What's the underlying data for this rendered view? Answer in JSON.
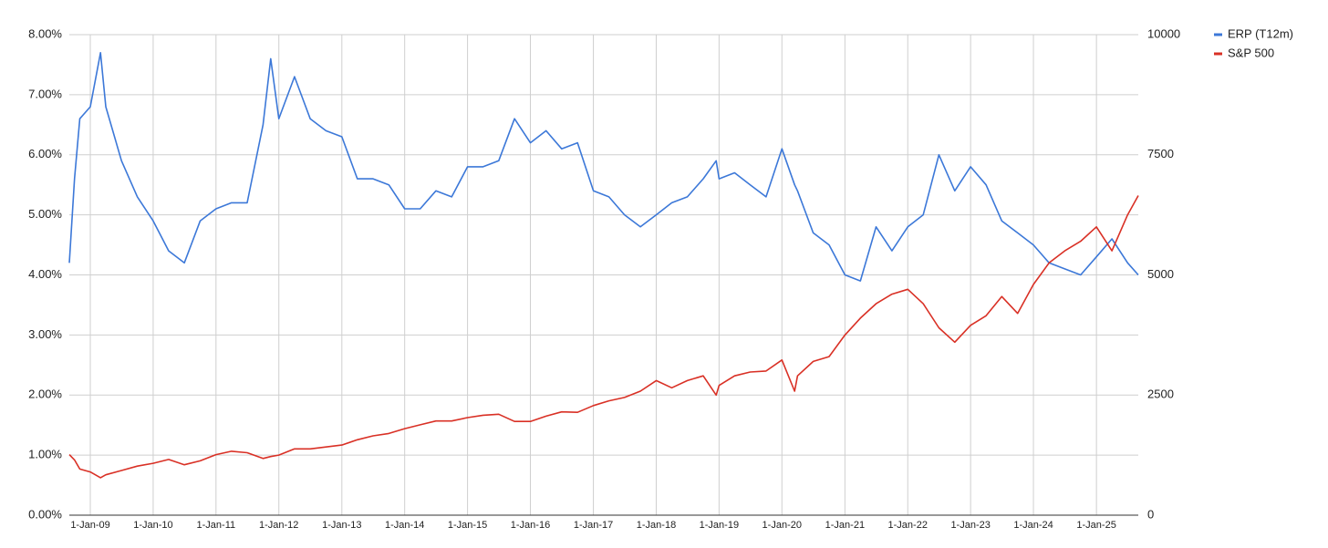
{
  "chart_data": {
    "type": "line",
    "x": [
      "2008-09-01",
      "2008-10-01",
      "2008-11-01",
      "2009-01-01",
      "2009-03-01",
      "2009-04-01",
      "2009-07-01",
      "2009-10-01",
      "2010-01-01",
      "2010-04-01",
      "2010-07-01",
      "2010-10-01",
      "2011-01-01",
      "2011-04-01",
      "2011-07-01",
      "2011-10-01",
      "2011-11-15",
      "2012-01-01",
      "2012-04-01",
      "2012-07-01",
      "2012-10-01",
      "2013-01-01",
      "2013-04-01",
      "2013-07-01",
      "2013-10-01",
      "2014-01-01",
      "2014-04-01",
      "2014-07-01",
      "2014-10-01",
      "2015-01-01",
      "2015-04-01",
      "2015-07-01",
      "2015-10-01",
      "2016-01-01",
      "2016-04-01",
      "2016-07-01",
      "2016-10-01",
      "2017-01-01",
      "2017-04-01",
      "2017-07-01",
      "2017-10-01",
      "2018-01-01",
      "2018-04-01",
      "2018-07-01",
      "2018-10-01",
      "2018-12-15",
      "2019-01-01",
      "2019-04-01",
      "2019-07-01",
      "2019-10-01",
      "2020-01-01",
      "2020-03-15",
      "2020-04-01",
      "2020-07-01",
      "2020-10-01",
      "2021-01-01",
      "2021-04-01",
      "2021-07-01",
      "2021-10-01",
      "2022-01-01",
      "2022-04-01",
      "2022-07-01",
      "2022-10-01",
      "2023-01-01",
      "2023-04-01",
      "2023-07-01",
      "2023-10-01",
      "2024-01-01",
      "2024-04-01",
      "2024-07-01",
      "2024-10-01",
      "2025-01-01",
      "2025-04-01",
      "2025-07-01",
      "2025-09-01"
    ],
    "series": [
      {
        "name": "ERP (T12m)",
        "color": "#3c78d8",
        "axis": "y",
        "values": [
          4.2,
          5.6,
          6.6,
          6.8,
          7.7,
          6.8,
          5.9,
          5.3,
          4.9,
          4.4,
          4.2,
          4.9,
          5.1,
          5.2,
          5.2,
          6.5,
          7.6,
          6.6,
          7.3,
          6.6,
          6.4,
          6.3,
          5.6,
          5.6,
          5.5,
          5.1,
          5.1,
          5.4,
          5.3,
          5.8,
          5.8,
          5.9,
          6.6,
          6.2,
          6.4,
          6.1,
          6.2,
          5.4,
          5.3,
          5.0,
          4.8,
          5.0,
          5.2,
          5.3,
          5.6,
          5.9,
          5.6,
          5.7,
          5.5,
          5.3,
          6.1,
          5.5,
          5.4,
          4.7,
          4.5,
          4.0,
          3.9,
          4.8,
          4.4,
          4.8,
          5.0,
          6.0,
          5.4,
          5.8,
          5.5,
          4.9,
          4.7,
          4.5,
          4.2,
          4.1,
          4.0,
          4.3,
          4.6,
          4.2,
          4.0
        ]
      },
      {
        "name": "S&P 500",
        "color": "#d93025",
        "axis": "y2",
        "values": [
          1260,
          1150,
          960,
          900,
          780,
          840,
          930,
          1020,
          1080,
          1160,
          1050,
          1130,
          1260,
          1330,
          1300,
          1180,
          1220,
          1250,
          1380,
          1380,
          1420,
          1460,
          1570,
          1650,
          1700,
          1800,
          1880,
          1960,
          1960,
          2030,
          2080,
          2100,
          1950,
          1950,
          2060,
          2150,
          2140,
          2280,
          2380,
          2450,
          2580,
          2800,
          2650,
          2800,
          2900,
          2500,
          2700,
          2900,
          2980,
          3000,
          3230,
          2580,
          2900,
          3200,
          3300,
          3750,
          4100,
          4400,
          4600,
          4700,
          4400,
          3900,
          3600,
          3950,
          4150,
          4550,
          4200,
          4800,
          5250,
          5500,
          5700,
          6000,
          5500,
          6250,
          6650
        ]
      }
    ],
    "xlim": [
      "2008-09-01",
      "2025-09-01"
    ],
    "xticks": [
      {
        "value": "2009-01-01",
        "label": "1-Jan-09"
      },
      {
        "value": "2010-01-01",
        "label": "1-Jan-10"
      },
      {
        "value": "2011-01-01",
        "label": "1-Jan-11"
      },
      {
        "value": "2012-01-01",
        "label": "1-Jan-12"
      },
      {
        "value": "2013-01-01",
        "label": "1-Jan-13"
      },
      {
        "value": "2014-01-01",
        "label": "1-Jan-14"
      },
      {
        "value": "2015-01-01",
        "label": "1-Jan-15"
      },
      {
        "value": "2016-01-01",
        "label": "1-Jan-16"
      },
      {
        "value": "2017-01-01",
        "label": "1-Jan-17"
      },
      {
        "value": "2018-01-01",
        "label": "1-Jan-18"
      },
      {
        "value": "2019-01-01",
        "label": "1-Jan-19"
      },
      {
        "value": "2020-01-01",
        "label": "1-Jan-20"
      },
      {
        "value": "2021-01-01",
        "label": "1-Jan-21"
      },
      {
        "value": "2022-01-01",
        "label": "1-Jan-22"
      },
      {
        "value": "2023-01-01",
        "label": "1-Jan-23"
      },
      {
        "value": "2024-01-01",
        "label": "1-Jan-24"
      },
      {
        "value": "2025-01-01",
        "label": "1-Jan-25"
      }
    ],
    "ylim": [
      0,
      8
    ],
    "yticks": [
      {
        "value": 0,
        "label": "0.00%"
      },
      {
        "value": 1,
        "label": "1.00%"
      },
      {
        "value": 2,
        "label": "2.00%"
      },
      {
        "value": 3,
        "label": "3.00%"
      },
      {
        "value": 4,
        "label": "4.00%"
      },
      {
        "value": 5,
        "label": "5.00%"
      },
      {
        "value": 6,
        "label": "6.00%"
      },
      {
        "value": 7,
        "label": "7.00%"
      },
      {
        "value": 8,
        "label": "8.00%"
      }
    ],
    "y2lim": [
      0,
      10000
    ],
    "y2ticks": [
      0,
      2500,
      5000,
      7500,
      10000
    ],
    "grid": true,
    "legend": "top-right"
  }
}
